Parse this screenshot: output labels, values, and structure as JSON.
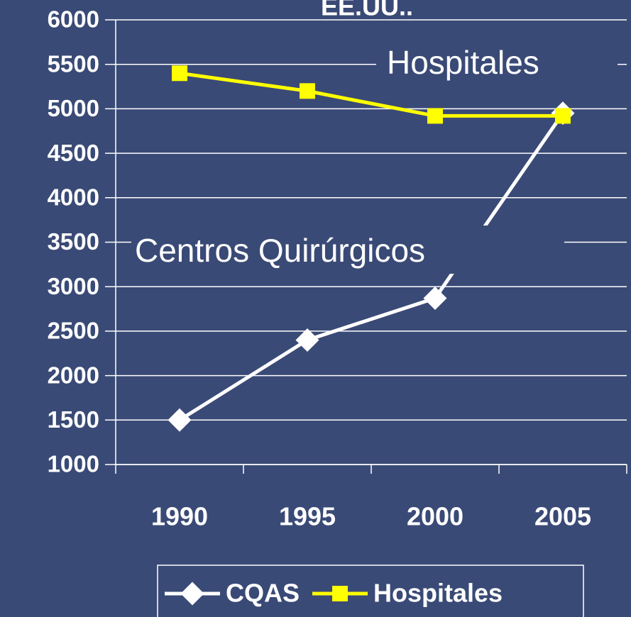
{
  "chart_data": {
    "type": "line",
    "title": "EE.UU..",
    "categories": [
      "1990",
      "1995",
      "2000",
      "2005"
    ],
    "series": [
      {
        "name": "CQAS",
        "color": "#ffffff",
        "marker": "diamond",
        "values": [
          1500,
          2400,
          2870,
          4950
        ]
      },
      {
        "name": "Hospitales",
        "color": "#ffff00",
        "marker": "square",
        "values": [
          5400,
          5200,
          4920,
          4920
        ]
      }
    ],
    "annotations": [
      "Hospitales",
      "Centros Quirúrgicos"
    ],
    "ylim": [
      1000,
      6000
    ],
    "yticks": [
      1000,
      1500,
      2000,
      2500,
      3000,
      3500,
      4000,
      4500,
      5000,
      5500,
      6000
    ],
    "grid": true,
    "legend": "bottom"
  }
}
